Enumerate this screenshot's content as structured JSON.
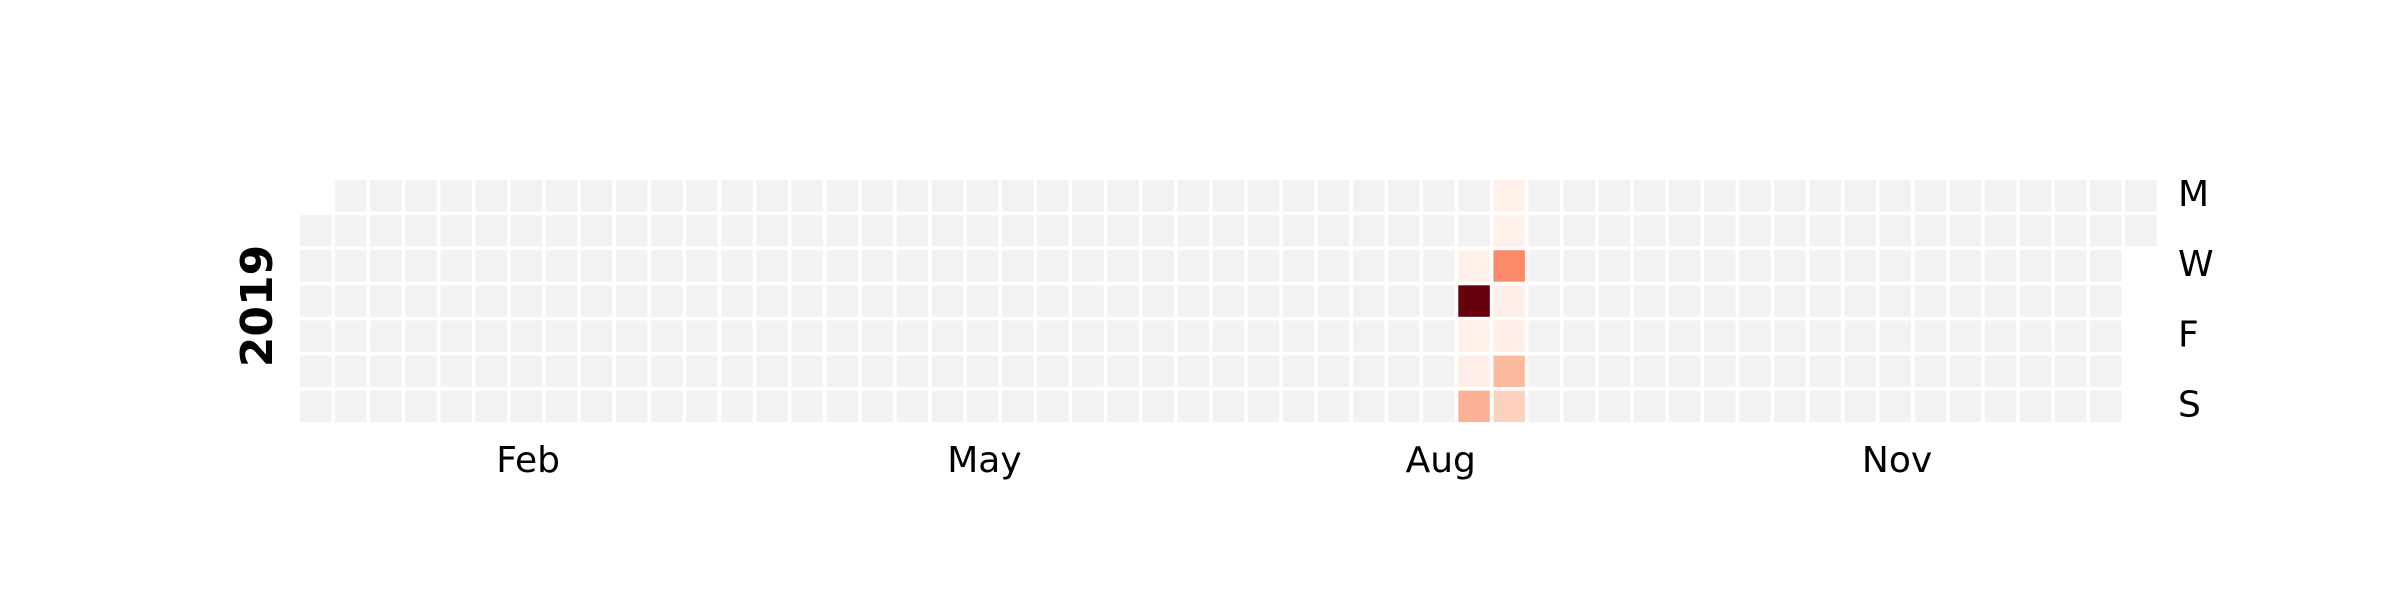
{
  "chart_data": {
    "type": "heatmap",
    "year": "2019",
    "title": "",
    "xlabel": "",
    "ylabel": "",
    "grid": false,
    "legend": "none",
    "month_labels": [
      {
        "label": "Feb",
        "week": 6.5
      },
      {
        "label": "May",
        "week": 19.5
      },
      {
        "label": "Aug",
        "week": 32.5
      },
      {
        "label": "Nov",
        "week": 45.5
      }
    ],
    "weekday_labels": [
      {
        "label": "M",
        "day": 0
      },
      {
        "label": "W",
        "day": 2
      },
      {
        "label": "F",
        "day": 4
      },
      {
        "label": "S",
        "day": 6
      }
    ],
    "colors": {
      "empty": "#f2f2f2",
      "gap": "#ffffff",
      "text": "#000000"
    },
    "colormap": [
      "#fff5f0",
      "#fcbba1",
      "#fc8a6a",
      "#cb181d",
      "#67000d"
    ],
    "value_range": [
      0,
      10
    ],
    "date_range": [
      "2019-01-01",
      "2019-12-31"
    ],
    "nonzero_values": [
      {
        "date": "2019-08-21",
        "value": 0.2
      },
      {
        "date": "2019-08-22",
        "value": 10
      },
      {
        "date": "2019-08-23",
        "value": 0.2
      },
      {
        "date": "2019-08-24",
        "value": 0.3
      },
      {
        "date": "2019-08-25",
        "value": 3
      },
      {
        "date": "2019-08-26",
        "value": 0.2
      },
      {
        "date": "2019-08-27",
        "value": 0.2
      },
      {
        "date": "2019-08-28",
        "value": 5
      },
      {
        "date": "2019-08-29",
        "value": 0.3
      },
      {
        "date": "2019-08-30",
        "value": 0.3
      },
      {
        "date": "2019-08-31",
        "value": 2.5
      },
      {
        "date": "2019-09-01",
        "value": 1.5
      }
    ]
  }
}
